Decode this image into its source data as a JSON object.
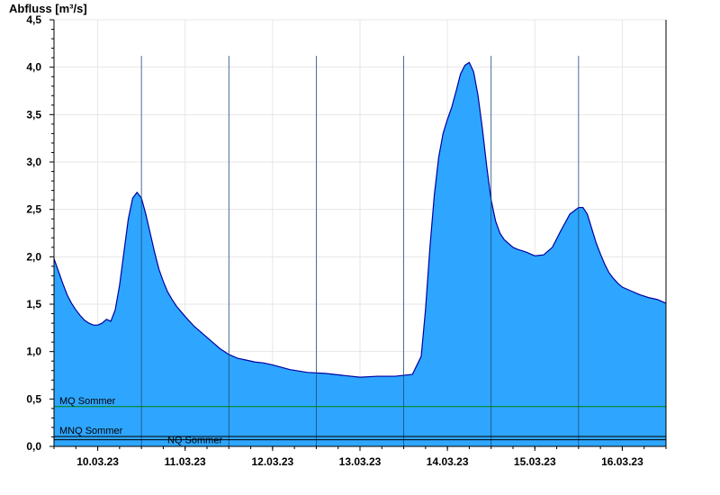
{
  "chart_data": {
    "type": "area",
    "ylabel": "Abfluss [m³/s]",
    "xlabel": "",
    "title": "",
    "ylim": [
      0,
      4.5
    ],
    "y_ticks": [
      "0,0",
      "0,5",
      "1,0",
      "1,5",
      "2,0",
      "2,5",
      "3,0",
      "3,5",
      "4,0",
      "4,5"
    ],
    "x_range_days": [
      -0.5,
      6.5
    ],
    "x_ticks": [
      {
        "label": "10.03.23",
        "day": 0
      },
      {
        "label": "11.03.23",
        "day": 1
      },
      {
        "label": "12.03.23",
        "day": 2
      },
      {
        "label": "13.03.23",
        "day": 3
      },
      {
        "label": "14.03.23",
        "day": 4
      },
      {
        "label": "15.03.23",
        "day": 5
      },
      {
        "label": "16.03.23",
        "day": 6
      }
    ],
    "grid": true,
    "colors": {
      "fill": "#2ea6ff",
      "line": "#0000a0",
      "mq": "#008000",
      "low": "#000000"
    },
    "series": [
      {
        "x": [
          -0.5,
          -0.45,
          -0.4,
          -0.35,
          -0.3,
          -0.25,
          -0.2,
          -0.15,
          -0.1,
          -0.05,
          0,
          0.05,
          0.1,
          0.15,
          0.2,
          0.25,
          0.3,
          0.35,
          0.4,
          0.45,
          0.5,
          0.55,
          0.6,
          0.65,
          0.7,
          0.75,
          0.8,
          0.85,
          0.9,
          1.0,
          1.1,
          1.2,
          1.3,
          1.4,
          1.5,
          1.6,
          1.7,
          1.8,
          1.9,
          2.0,
          2.2,
          2.4,
          2.6,
          2.8,
          3.0,
          3.2,
          3.4,
          3.6,
          3.7,
          3.75,
          3.8,
          3.85,
          3.9,
          3.95,
          4.0,
          4.05,
          4.1,
          4.15,
          4.2,
          4.25,
          4.3,
          4.35,
          4.4,
          4.45,
          4.5,
          4.55,
          4.6,
          4.65,
          4.7,
          4.75,
          4.8,
          4.9,
          5.0,
          5.1,
          5.2,
          5.3,
          5.4,
          5.5,
          5.55,
          5.6,
          5.65,
          5.7,
          5.75,
          5.8,
          5.85,
          5.9,
          5.95,
          6.0,
          6.1,
          6.2,
          6.3,
          6.4,
          6.5
        ],
        "values": [
          1.98,
          1.85,
          1.72,
          1.6,
          1.51,
          1.44,
          1.38,
          1.33,
          1.3,
          1.28,
          1.28,
          1.3,
          1.34,
          1.32,
          1.44,
          1.7,
          2.05,
          2.4,
          2.62,
          2.68,
          2.62,
          2.45,
          2.25,
          2.05,
          1.87,
          1.74,
          1.63,
          1.55,
          1.48,
          1.37,
          1.27,
          1.19,
          1.11,
          1.03,
          0.97,
          0.93,
          0.91,
          0.89,
          0.88,
          0.86,
          0.81,
          0.78,
          0.77,
          0.75,
          0.73,
          0.74,
          0.74,
          0.76,
          0.95,
          1.45,
          2.1,
          2.65,
          3.05,
          3.3,
          3.45,
          3.58,
          3.75,
          3.93,
          4.02,
          4.05,
          3.95,
          3.7,
          3.35,
          2.95,
          2.6,
          2.38,
          2.25,
          2.18,
          2.14,
          2.1,
          2.08,
          2.05,
          2.01,
          2.02,
          2.1,
          2.28,
          2.45,
          2.52,
          2.52,
          2.45,
          2.3,
          2.15,
          2.03,
          1.92,
          1.83,
          1.77,
          1.72,
          1.68,
          1.64,
          1.6,
          1.57,
          1.55,
          1.51
        ]
      }
    ],
    "reference_lines": [
      {
        "name": "MQ Sommer",
        "value": 0.42
      },
      {
        "name": "MNQ Sommer",
        "value": 0.105
      },
      {
        "name": "NQ Sommer",
        "value": 0.07
      }
    ]
  }
}
